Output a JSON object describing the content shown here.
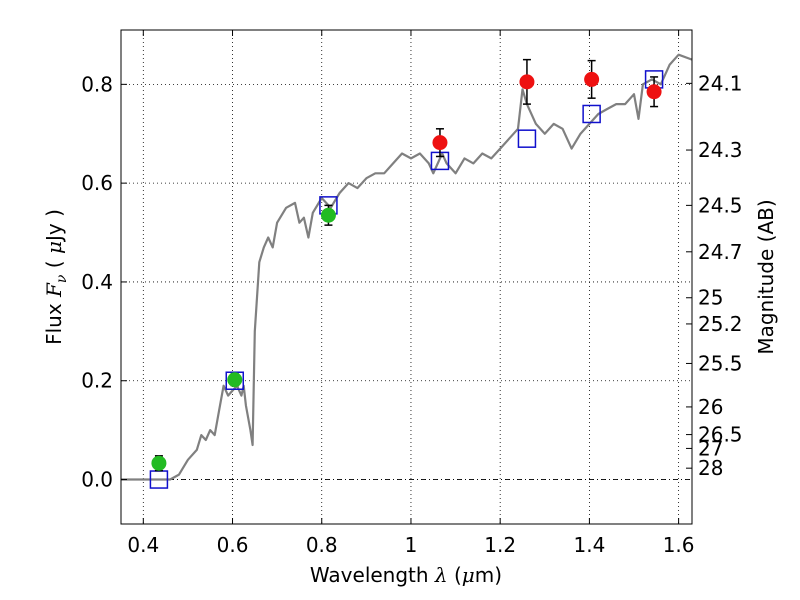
{
  "chart_data": {
    "type": "scatter",
    "xlabel_parts": [
      "Wavelength  ",
      "λ",
      " (",
      "μ",
      "m)"
    ],
    "ylabel_parts": [
      "Flux  ",
      "F",
      "ν",
      "  ( ",
      "μ",
      "Jy )"
    ],
    "y2label": "Magnitude (AB)",
    "xlim": [
      0.35,
      1.63
    ],
    "ylim": [
      -0.09,
      0.91
    ],
    "grid": true,
    "x_ticks": [
      {
        "value": 0.4,
        "label": "0.4"
      },
      {
        "value": 0.6,
        "label": "0.6"
      },
      {
        "value": 0.8,
        "label": "0.8"
      },
      {
        "value": 1.0,
        "label": "1"
      },
      {
        "value": 1.2,
        "label": "1.2"
      },
      {
        "value": 1.4,
        "label": "1.4"
      },
      {
        "value": 1.6,
        "label": "1.6"
      }
    ],
    "y_ticks": [
      {
        "value": 0.0,
        "label": "0.0"
      },
      {
        "value": 0.2,
        "label": "0.2"
      },
      {
        "value": 0.4,
        "label": "0.4"
      },
      {
        "value": 0.6,
        "label": "0.6"
      },
      {
        "value": 0.8,
        "label": "0.8"
      }
    ],
    "mag_ticks": [
      {
        "value": 0.802,
        "label": "24.1"
      },
      {
        "value": 0.667,
        "label": "24.3"
      },
      {
        "value": 0.555,
        "label": "24.5"
      },
      {
        "value": 0.461,
        "label": "24.7"
      },
      {
        "value": 0.368,
        "label": "25"
      },
      {
        "value": 0.315,
        "label": "25.2"
      },
      {
        "value": 0.235,
        "label": "25.5"
      },
      {
        "value": 0.147,
        "label": "26"
      },
      {
        "value": 0.091,
        "label": "26.5"
      },
      {
        "value": 0.063,
        "label": "27"
      },
      {
        "value": 0.023,
        "label": "28"
      }
    ],
    "model_spectrum": {
      "color": "#808080",
      "points": [
        [
          0.35,
          0.0
        ],
        [
          0.46,
          0.0
        ],
        [
          0.48,
          0.01
        ],
        [
          0.5,
          0.04
        ],
        [
          0.52,
          0.06
        ],
        [
          0.53,
          0.09
        ],
        [
          0.54,
          0.08
        ],
        [
          0.55,
          0.1
        ],
        [
          0.56,
          0.09
        ],
        [
          0.57,
          0.14
        ],
        [
          0.58,
          0.19
        ],
        [
          0.59,
          0.17
        ],
        [
          0.6,
          0.18
        ],
        [
          0.61,
          0.19
        ],
        [
          0.62,
          0.17
        ],
        [
          0.625,
          0.19
        ],
        [
          0.63,
          0.15
        ],
        [
          0.64,
          0.1
        ],
        [
          0.645,
          0.07
        ],
        [
          0.65,
          0.3
        ],
        [
          0.66,
          0.44
        ],
        [
          0.67,
          0.47
        ],
        [
          0.68,
          0.49
        ],
        [
          0.69,
          0.47
        ],
        [
          0.7,
          0.52
        ],
        [
          0.72,
          0.55
        ],
        [
          0.74,
          0.56
        ],
        [
          0.75,
          0.52
        ],
        [
          0.76,
          0.53
        ],
        [
          0.77,
          0.49
        ],
        [
          0.78,
          0.54
        ],
        [
          0.8,
          0.57
        ],
        [
          0.82,
          0.55
        ],
        [
          0.84,
          0.58
        ],
        [
          0.86,
          0.6
        ],
        [
          0.88,
          0.59
        ],
        [
          0.9,
          0.61
        ],
        [
          0.92,
          0.62
        ],
        [
          0.94,
          0.62
        ],
        [
          0.96,
          0.64
        ],
        [
          0.98,
          0.66
        ],
        [
          1.0,
          0.65
        ],
        [
          1.02,
          0.66
        ],
        [
          1.04,
          0.64
        ],
        [
          1.05,
          0.62
        ],
        [
          1.07,
          0.66
        ],
        [
          1.08,
          0.64
        ],
        [
          1.1,
          0.62
        ],
        [
          1.12,
          0.65
        ],
        [
          1.14,
          0.64
        ],
        [
          1.16,
          0.66
        ],
        [
          1.18,
          0.65
        ],
        [
          1.2,
          0.67
        ],
        [
          1.22,
          0.69
        ],
        [
          1.24,
          0.71
        ],
        [
          1.25,
          0.79
        ],
        [
          1.26,
          0.76
        ],
        [
          1.28,
          0.72
        ],
        [
          1.3,
          0.7
        ],
        [
          1.32,
          0.72
        ],
        [
          1.34,
          0.71
        ],
        [
          1.36,
          0.67
        ],
        [
          1.38,
          0.7
        ],
        [
          1.4,
          0.72
        ],
        [
          1.42,
          0.74
        ],
        [
          1.44,
          0.75
        ],
        [
          1.46,
          0.76
        ],
        [
          1.48,
          0.76
        ],
        [
          1.5,
          0.78
        ],
        [
          1.51,
          0.73
        ],
        [
          1.52,
          0.8
        ],
        [
          1.54,
          0.81
        ],
        [
          1.56,
          0.8
        ],
        [
          1.58,
          0.84
        ],
        [
          1.6,
          0.86
        ],
        [
          1.63,
          0.85
        ]
      ]
    },
    "model_points": {
      "color": "#1010cc",
      "points": [
        [
          0.435,
          0.0
        ],
        [
          0.605,
          0.2
        ],
        [
          0.815,
          0.555
        ],
        [
          1.065,
          0.645
        ],
        [
          1.26,
          0.69
        ],
        [
          1.405,
          0.74
        ],
        [
          1.545,
          0.81
        ]
      ]
    },
    "green_points": {
      "color": "#22bb22",
      "points": [
        {
          "x": 0.435,
          "y": 0.033,
          "err": 0.015
        },
        {
          "x": 0.605,
          "y": 0.202,
          "err": 0.012
        },
        {
          "x": 0.815,
          "y": 0.535,
          "err": 0.02
        }
      ]
    },
    "red_points": {
      "color": "#ee1111",
      "points": [
        {
          "x": 1.065,
          "y": 0.682,
          "err": 0.028
        },
        {
          "x": 1.26,
          "y": 0.805,
          "err": 0.045
        },
        {
          "x": 1.405,
          "y": 0.81,
          "err": 0.038
        },
        {
          "x": 1.545,
          "y": 0.785,
          "err": 0.03
        }
      ]
    }
  }
}
